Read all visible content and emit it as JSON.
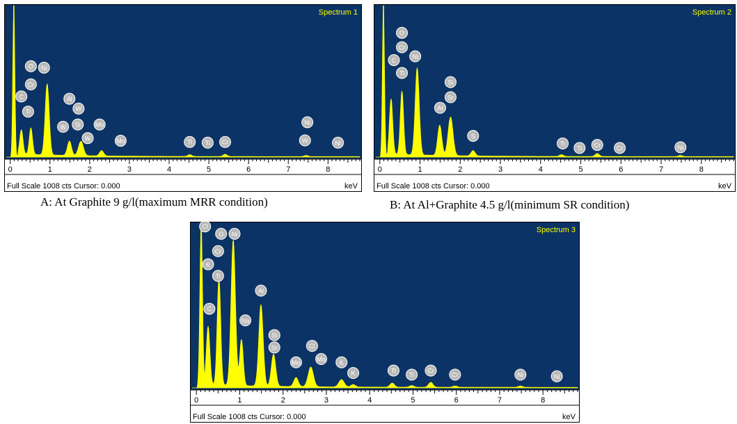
{
  "chart_data": [
    {
      "type": "line",
      "title": "Spectrum 1",
      "caption": "A: At Graphite 9 g/l(maximum  MRR condition)",
      "footer": "Full Scale 1008 cts Cursor: 0.000",
      "xunit": "keV",
      "xlim": [
        -0.1,
        8.8
      ],
      "x_ticks": [
        0,
        1,
        2,
        3,
        4,
        5,
        6,
        7,
        8
      ],
      "peaks": [
        {
          "x": 0.09,
          "y": 1000,
          "w": 0.025
        },
        {
          "x": 0.28,
          "y": 160,
          "w": 0.04
        },
        {
          "x": 0.52,
          "y": 175,
          "w": 0.04
        },
        {
          "x": 0.93,
          "y": 470,
          "w": 0.05
        },
        {
          "x": 1.49,
          "y": 95,
          "w": 0.05
        },
        {
          "x": 1.78,
          "y": 95,
          "w": 0.06
        },
        {
          "x": 2.3,
          "y": 35,
          "w": 0.05
        },
        {
          "x": 4.52,
          "y": 12,
          "w": 0.05
        },
        {
          "x": 5.41,
          "y": 15,
          "w": 0.05
        },
        {
          "x": 7.45,
          "y": 8,
          "w": 0.05
        }
      ],
      "labels": [
        {
          "text": "C",
          "x": 0.28,
          "y": 400
        },
        {
          "text": "Ti",
          "x": 0.45,
          "y": 300
        },
        {
          "text": "Cr",
          "x": 0.52,
          "y": 480
        },
        {
          "text": "O",
          "x": 0.52,
          "y": 600
        },
        {
          "text": "Ni",
          "x": 0.85,
          "y": 590
        },
        {
          "text": "Al",
          "x": 1.49,
          "y": 385
        },
        {
          "text": "W",
          "x": 1.72,
          "y": 320
        },
        {
          "text": "W",
          "x": 1.33,
          "y": 200
        },
        {
          "text": "Si",
          "x": 1.7,
          "y": 215
        },
        {
          "text": "W",
          "x": 1.95,
          "y": 125
        },
        {
          "text": "Mo",
          "x": 2.25,
          "y": 215
        },
        {
          "text": "Mo",
          "x": 2.78,
          "y": 108
        },
        {
          "text": "Ti",
          "x": 4.52,
          "y": 100
        },
        {
          "text": "Ti",
          "x": 4.97,
          "y": 95
        },
        {
          "text": "Cr",
          "x": 5.41,
          "y": 100
        },
        {
          "text": "Ni",
          "x": 7.48,
          "y": 230
        },
        {
          "text": "W",
          "x": 7.42,
          "y": 110
        },
        {
          "text": "Ni",
          "x": 8.25,
          "y": 95
        }
      ]
    },
    {
      "type": "line",
      "title": "Spectrum 2",
      "caption": "B: At Al+Graphite 4.5 g/l(minimum  SR condition)",
      "footer": "Full Scale 1008 cts Cursor: 0.000",
      "xunit": "keV",
      "xlim": [
        -0.1,
        8.8
      ],
      "x_ticks": [
        0,
        1,
        2,
        3,
        4,
        5,
        6,
        7,
        8
      ],
      "peaks": [
        {
          "x": 0.09,
          "y": 1000,
          "w": 0.025
        },
        {
          "x": 0.28,
          "y": 365,
          "w": 0.04
        },
        {
          "x": 0.55,
          "y": 420,
          "w": 0.04
        },
        {
          "x": 0.93,
          "y": 575,
          "w": 0.05
        },
        {
          "x": 1.49,
          "y": 200,
          "w": 0.05
        },
        {
          "x": 1.76,
          "y": 255,
          "w": 0.06
        },
        {
          "x": 2.32,
          "y": 35,
          "w": 0.05
        },
        {
          "x": 4.52,
          "y": 12,
          "w": 0.05
        },
        {
          "x": 5.41,
          "y": 20,
          "w": 0.05
        },
        {
          "x": 7.48,
          "y": 8,
          "w": 0.05
        }
      ],
      "labels": [
        {
          "text": "O",
          "x": 0.55,
          "y": 820
        },
        {
          "text": "Cr",
          "x": 0.55,
          "y": 725
        },
        {
          "text": "C",
          "x": 0.35,
          "y": 640
        },
        {
          "text": "Ni",
          "x": 0.88,
          "y": 665
        },
        {
          "text": "Ti",
          "x": 0.55,
          "y": 555
        },
        {
          "text": "Si",
          "x": 1.76,
          "y": 495
        },
        {
          "text": "Sr",
          "x": 1.76,
          "y": 395
        },
        {
          "text": "Al",
          "x": 1.5,
          "y": 325
        },
        {
          "text": "S",
          "x": 2.32,
          "y": 140
        },
        {
          "text": "Ti",
          "x": 4.55,
          "y": 90
        },
        {
          "text": "Ti",
          "x": 4.97,
          "y": 60
        },
        {
          "text": "Cr",
          "x": 5.41,
          "y": 80
        },
        {
          "text": "Cr",
          "x": 5.97,
          "y": 60
        },
        {
          "text": "Ni",
          "x": 7.48,
          "y": 65
        }
      ]
    },
    {
      "type": "line",
      "title": "Spectrum 3",
      "caption": "",
      "footer": "Full Scale 1008 cts Cursor: 0.000",
      "xunit": "keV",
      "xlim": [
        -0.1,
        8.8
      ],
      "x_ticks": [
        0,
        1,
        2,
        3,
        4,
        5,
        6,
        7,
        8
      ],
      "peaks": [
        {
          "x": 0.11,
          "y": 1000,
          "w": 0.03
        },
        {
          "x": 0.27,
          "y": 355,
          "w": 0.04
        },
        {
          "x": 0.52,
          "y": 650,
          "w": 0.04
        },
        {
          "x": 0.85,
          "y": 885,
          "w": 0.05
        },
        {
          "x": 1.04,
          "y": 280,
          "w": 0.04
        },
        {
          "x": 1.49,
          "y": 495,
          "w": 0.05
        },
        {
          "x": 1.78,
          "y": 195,
          "w": 0.05
        },
        {
          "x": 2.3,
          "y": 55,
          "w": 0.05
        },
        {
          "x": 2.64,
          "y": 120,
          "w": 0.06
        },
        {
          "x": 3.35,
          "y": 45,
          "w": 0.06
        },
        {
          "x": 3.62,
          "y": 15,
          "w": 0.05
        },
        {
          "x": 4.52,
          "y": 25,
          "w": 0.05
        },
        {
          "x": 4.97,
          "y": 10,
          "w": 0.05
        },
        {
          "x": 5.41,
          "y": 30,
          "w": 0.05
        },
        {
          "x": 5.97,
          "y": 8,
          "w": 0.05
        },
        {
          "x": 7.48,
          "y": 8,
          "w": 0.05
        }
      ],
      "labels": [
        {
          "text": "Cl",
          "x": 0.2,
          "y": 980
        },
        {
          "text": "O",
          "x": 0.57,
          "y": 935
        },
        {
          "text": "Ni",
          "x": 0.88,
          "y": 935
        },
        {
          "text": "Cr",
          "x": 0.5,
          "y": 830
        },
        {
          "text": "K",
          "x": 0.27,
          "y": 750
        },
        {
          "text": "Ti",
          "x": 0.5,
          "y": 680
        },
        {
          "text": "C",
          "x": 0.3,
          "y": 480
        },
        {
          "text": "Al",
          "x": 1.49,
          "y": 590
        },
        {
          "text": "Na",
          "x": 1.13,
          "y": 410
        },
        {
          "text": "Si",
          "x": 1.8,
          "y": 320
        },
        {
          "text": "Sr",
          "x": 1.8,
          "y": 245
        },
        {
          "text": "Cl",
          "x": 2.67,
          "y": 255
        },
        {
          "text": "Mo",
          "x": 2.3,
          "y": 155
        },
        {
          "text": "Mo",
          "x": 2.88,
          "y": 175
        },
        {
          "text": "K",
          "x": 3.35,
          "y": 155
        },
        {
          "text": "K",
          "x": 3.62,
          "y": 90
        },
        {
          "text": "Ti",
          "x": 4.55,
          "y": 105
        },
        {
          "text": "Ti",
          "x": 4.97,
          "y": 80
        },
        {
          "text": "Cr",
          "x": 5.41,
          "y": 105
        },
        {
          "text": "Cr",
          "x": 5.97,
          "y": 80
        },
        {
          "text": "Ni",
          "x": 7.48,
          "y": 80
        },
        {
          "text": "Ni",
          "x": 8.32,
          "y": 70
        }
      ]
    }
  ],
  "colors": {
    "plot_bg": "#0b3366",
    "spectrum": "#ffff00",
    "label_circle": "#b8b8b8",
    "axis_bg": "#ffffff"
  }
}
